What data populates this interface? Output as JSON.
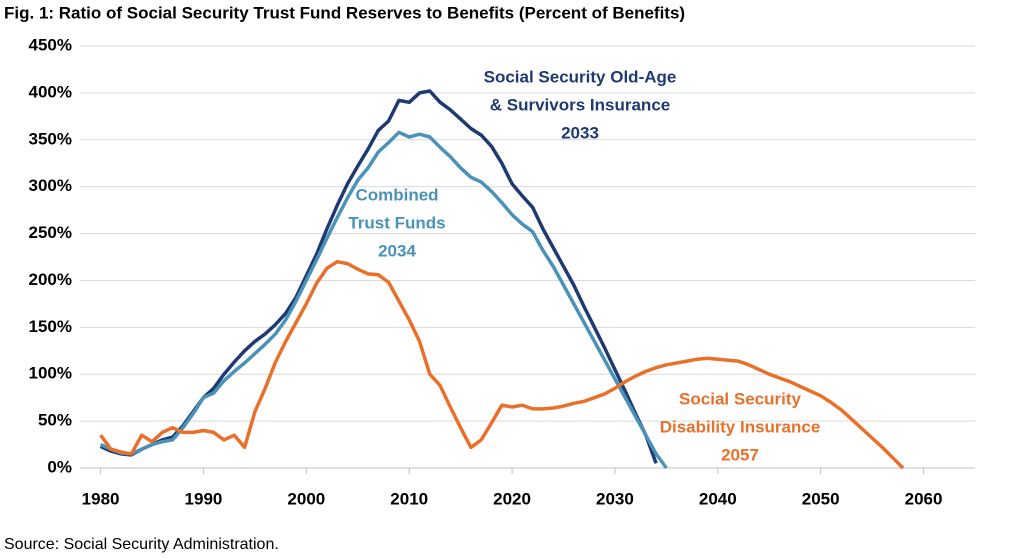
{
  "chart_data": {
    "type": "line",
    "title": "Fig. 1: Ratio of Social Security Trust Fund Reserves to Benefits (Percent of Benefits)",
    "source": "Source: Social Security Administration.",
    "x": [
      1980,
      1981,
      1982,
      1983,
      1984,
      1985,
      1986,
      1987,
      1988,
      1989,
      1990,
      1991,
      1992,
      1993,
      1994,
      1995,
      1996,
      1997,
      1998,
      1999,
      2000,
      2001,
      2002,
      2003,
      2004,
      2005,
      2006,
      2007,
      2008,
      2009,
      2010,
      2011,
      2012,
      2013,
      2014,
      2015,
      2016,
      2017,
      2018,
      2019,
      2020,
      2021,
      2022,
      2023,
      2024,
      2025,
      2026,
      2027,
      2028,
      2029,
      2030,
      2031,
      2032,
      2033,
      2034,
      2035,
      2036,
      2037,
      2038,
      2039,
      2040,
      2041,
      2042,
      2043,
      2044,
      2045,
      2046,
      2047,
      2048,
      2049,
      2050,
      2051,
      2052,
      2053,
      2054,
      2055,
      2056,
      2057,
      2058
    ],
    "series": [
      {
        "name": "Social Security Old-Age & Survivors Insurance",
        "color": "#1f3a73",
        "values": [
          23,
          18,
          15,
          14,
          20,
          25,
          30,
          33,
          45,
          60,
          75,
          85,
          100,
          113,
          125,
          135,
          143,
          153,
          165,
          182,
          205,
          228,
          255,
          280,
          303,
          322,
          340,
          360,
          370,
          392,
          390,
          400,
          402,
          390,
          382,
          372,
          362,
          355,
          343,
          325,
          303,
          290,
          278,
          255,
          235,
          215,
          195,
          172,
          150,
          128,
          105,
          82,
          58,
          35,
          5,
          null,
          null,
          null,
          null,
          null,
          null,
          null,
          null,
          null,
          null,
          null,
          null,
          null,
          null,
          null,
          null,
          null,
          null,
          null,
          null,
          null,
          null,
          null,
          null
        ]
      },
      {
        "name": "Combined Trust Funds",
        "color": "#4a92b9",
        "values": [
          25,
          20,
          16,
          15,
          20,
          25,
          28,
          30,
          43,
          58,
          75,
          80,
          93,
          103,
          112,
          122,
          132,
          143,
          158,
          178,
          200,
          222,
          245,
          267,
          288,
          307,
          320,
          337,
          347,
          358,
          353,
          356,
          353,
          342,
          332,
          320,
          310,
          305,
          295,
          283,
          270,
          260,
          252,
          232,
          215,
          195,
          175,
          155,
          135,
          115,
          95,
          75,
          55,
          35,
          15,
          0,
          null,
          null,
          null,
          null,
          null,
          null,
          null,
          null,
          null,
          null,
          null,
          null,
          null,
          null,
          null,
          null,
          null,
          null,
          null,
          null,
          null,
          null,
          null
        ]
      },
      {
        "name": "Social Security Disability Insurance",
        "color": "#e8702a",
        "values": [
          35,
          20,
          17,
          15,
          35,
          28,
          38,
          43,
          38,
          38,
          40,
          38,
          30,
          35,
          22,
          60,
          85,
          113,
          135,
          155,
          175,
          197,
          213,
          220,
          218,
          212,
          207,
          206,
          198,
          178,
          158,
          135,
          100,
          88,
          65,
          43,
          22,
          30,
          48,
          67,
          65,
          67,
          63,
          63,
          64,
          66,
          69,
          71,
          75,
          79,
          85,
          92,
          98,
          103,
          107,
          110,
          112,
          114,
          116,
          117,
          116,
          115,
          114,
          110,
          105,
          100,
          96,
          92,
          87,
          82,
          77,
          70,
          62,
          52,
          42,
          32,
          22,
          11,
          0
        ]
      }
    ],
    "annotations": [
      {
        "lines": [
          "Social Security Old-Age",
          "& Survivors Insurance",
          "2033"
        ],
        "color": "#1f3a73"
      },
      {
        "lines": [
          "Combined",
          "Trust Funds",
          "2034"
        ],
        "color": "#4a92b9"
      },
      {
        "lines": [
          "Social Security",
          "Disability Insurance",
          "2057"
        ],
        "color": "#e8702a"
      }
    ],
    "xlim": [
      1978,
      2065
    ],
    "xticks": [
      1980,
      1990,
      2000,
      2010,
      2020,
      2030,
      2040,
      2050,
      2060
    ],
    "ylim": [
      0,
      450
    ],
    "yticks": [
      {
        "value": 0,
        "label": "0%"
      },
      {
        "value": 50,
        "label": "50%"
      },
      {
        "value": 100,
        "label": "100%"
      },
      {
        "value": 150,
        "label": "150%"
      },
      {
        "value": 200,
        "label": "200%"
      },
      {
        "value": 250,
        "label": "250%"
      },
      {
        "value": 300,
        "label": "300%"
      },
      {
        "value": 350,
        "label": "350%"
      },
      {
        "value": 400,
        "label": "400%"
      },
      {
        "value": 450,
        "label": "450%"
      }
    ],
    "grid": true
  }
}
